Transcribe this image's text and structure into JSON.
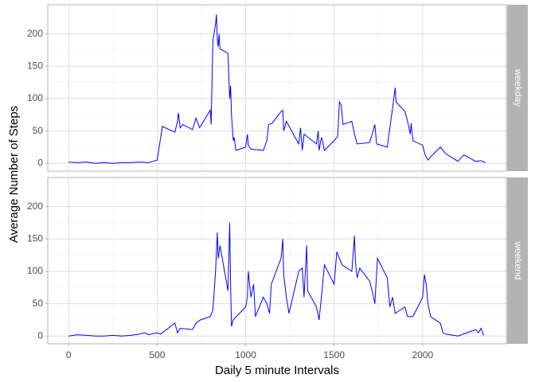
{
  "chart_data": [
    {
      "type": "line",
      "facet_label": "weekday",
      "y_label": "Average Number of Steps",
      "xlim": [
        -118,
        2473
      ],
      "ylim": [
        -12,
        245
      ],
      "xticks": [
        0,
        500,
        1000,
        1500,
        2000
      ],
      "yticks": [
        0,
        50,
        100,
        150,
        200
      ],
      "grid": true,
      "x": [
        0,
        50,
        100,
        150,
        200,
        250,
        300,
        350,
        400,
        450,
        500,
        520,
        530,
        600,
        615,
        620,
        630,
        645,
        700,
        720,
        740,
        800,
        805,
        815,
        830,
        835,
        840,
        845,
        850,
        855,
        900,
        910,
        915,
        920,
        930,
        935,
        945,
        1000,
        1010,
        1015,
        1030,
        1100,
        1120,
        1130,
        1150,
        1200,
        1210,
        1215,
        1230,
        1300,
        1310,
        1320,
        1330,
        1400,
        1410,
        1415,
        1425,
        1430,
        1445,
        1500,
        1520,
        1530,
        1540,
        1550,
        1600,
        1615,
        1630,
        1700,
        1715,
        1730,
        1740,
        1800,
        1815,
        1830,
        1845,
        1850,
        1900,
        1915,
        1930,
        1935,
        1945,
        2000,
        2015,
        2030,
        2045,
        2100,
        2115,
        2130,
        2200,
        2220,
        2235,
        2300,
        2330,
        2355
      ],
      "series": [
        {
          "name": "weekday",
          "color": "#0000ff",
          "values": [
            2,
            1,
            2,
            0,
            1,
            0,
            1,
            1,
            2,
            1,
            5,
            40,
            57,
            48,
            65,
            78,
            55,
            60,
            52,
            70,
            55,
            82,
            60,
            190,
            215,
            230,
            190,
            180,
            200,
            177,
            170,
            100,
            120,
            75,
            35,
            40,
            20,
            25,
            45,
            28,
            22,
            20,
            35,
            60,
            62,
            80,
            82,
            50,
            65,
            30,
            55,
            20,
            45,
            30,
            50,
            20,
            35,
            40,
            20,
            35,
            42,
            95,
            90,
            60,
            65,
            45,
            30,
            32,
            45,
            60,
            30,
            25,
            55,
            85,
            117,
            95,
            80,
            65,
            45,
            62,
            35,
            28,
            12,
            5,
            10,
            25,
            20,
            15,
            3,
            10,
            13,
            3,
            4,
            1
          ]
        }
      ]
    },
    {
      "type": "line",
      "facet_label": "weekend",
      "x_label": "Daily 5 minute Intervals",
      "xlim": [
        -118,
        2473
      ],
      "ylim": [
        -12,
        245
      ],
      "xticks": [
        0,
        500,
        1000,
        1500,
        2000
      ],
      "yticks": [
        0,
        50,
        100,
        150,
        200
      ],
      "grid": true,
      "x": [
        0,
        50,
        100,
        150,
        200,
        250,
        300,
        350,
        400,
        430,
        450,
        500,
        520,
        600,
        615,
        630,
        700,
        720,
        745,
        800,
        815,
        830,
        840,
        845,
        855,
        900,
        910,
        915,
        920,
        930,
        1000,
        1010,
        1015,
        1030,
        1045,
        1055,
        1100,
        1120,
        1135,
        1145,
        1200,
        1210,
        1215,
        1230,
        1245,
        1300,
        1320,
        1330,
        1345,
        1350,
        1400,
        1415,
        1430,
        1445,
        1500,
        1515,
        1530,
        1545,
        1600,
        1615,
        1620,
        1630,
        1645,
        1700,
        1715,
        1730,
        1745,
        1800,
        1815,
        1830,
        1845,
        1900,
        1915,
        1930,
        1945,
        2000,
        2010,
        2020,
        2030,
        2045,
        2100,
        2115,
        2130,
        2200,
        2300,
        2315,
        2330,
        2345
      ],
      "series": [
        {
          "name": "weekend",
          "color": "#0000ff",
          "values": [
            0,
            2,
            1,
            0,
            0,
            1,
            0,
            1,
            3,
            5,
            2,
            5,
            3,
            20,
            5,
            12,
            10,
            20,
            25,
            30,
            40,
            100,
            160,
            120,
            140,
            70,
            175,
            80,
            15,
            25,
            45,
            60,
            100,
            60,
            80,
            30,
            60,
            50,
            35,
            80,
            120,
            150,
            95,
            60,
            35,
            100,
            105,
            60,
            140,
            70,
            45,
            25,
            65,
            110,
            80,
            130,
            120,
            110,
            100,
            155,
            115,
            90,
            105,
            85,
            70,
            50,
            120,
            90,
            45,
            60,
            35,
            45,
            30,
            30,
            30,
            60,
            95,
            80,
            50,
            30,
            20,
            5,
            3,
            0,
            10,
            5,
            12,
            1
          ]
        }
      ]
    }
  ]
}
